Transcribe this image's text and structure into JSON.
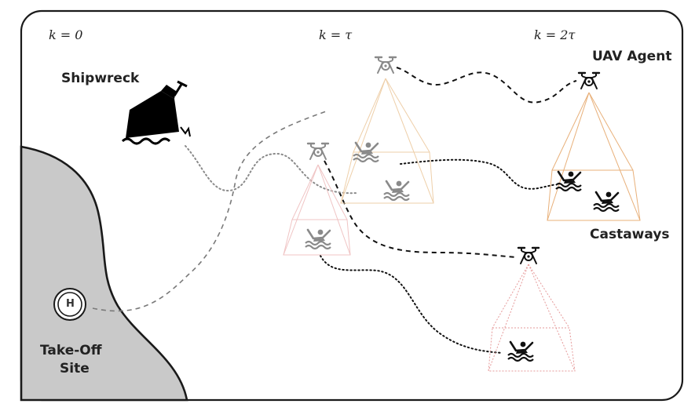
{
  "time_labels": {
    "k0": "k = 0",
    "k1": "k = τ",
    "k2": "k = 2τ"
  },
  "labels": {
    "shipwreck": "Shipwreck",
    "uav_agent": "UAV Agent",
    "castaways": "Castaways",
    "takeoff_line1": "Take-Off",
    "takeoff_line2": "Site",
    "helipad": "H"
  },
  "icons": {
    "drone": "drone-icon",
    "swimmer": "swimmer-icon",
    "ship": "shipwreck-icon",
    "helipad": "helipad-icon"
  },
  "colors": {
    "land": "#c9c9c9",
    "frame": "#1a1a1a",
    "fov_orange": "#e8b07a",
    "fov_red": "#e69a9a",
    "faded": "#8a8a8a"
  }
}
